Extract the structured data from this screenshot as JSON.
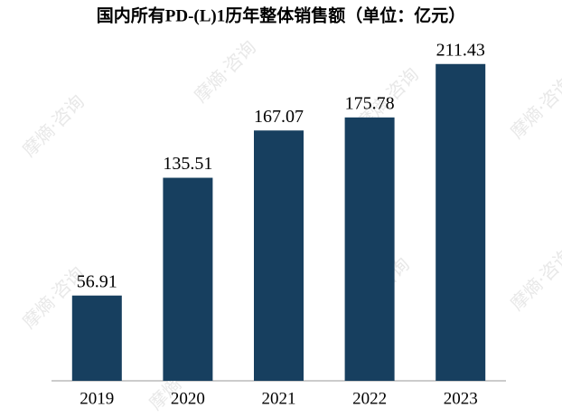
{
  "chart_data": {
    "type": "bar",
    "title": "国内所有PD-(L)1历年整体销售额（单位：亿元）",
    "categories": [
      "2019",
      "2020",
      "2021",
      "2022",
      "2023"
    ],
    "values": [
      56.91,
      135.51,
      167.07,
      175.78,
      211.43
    ],
    "color": "#173f5f",
    "ylim": [
      0,
      230
    ],
    "grid": false,
    "watermark": "摩熵·咨询"
  }
}
